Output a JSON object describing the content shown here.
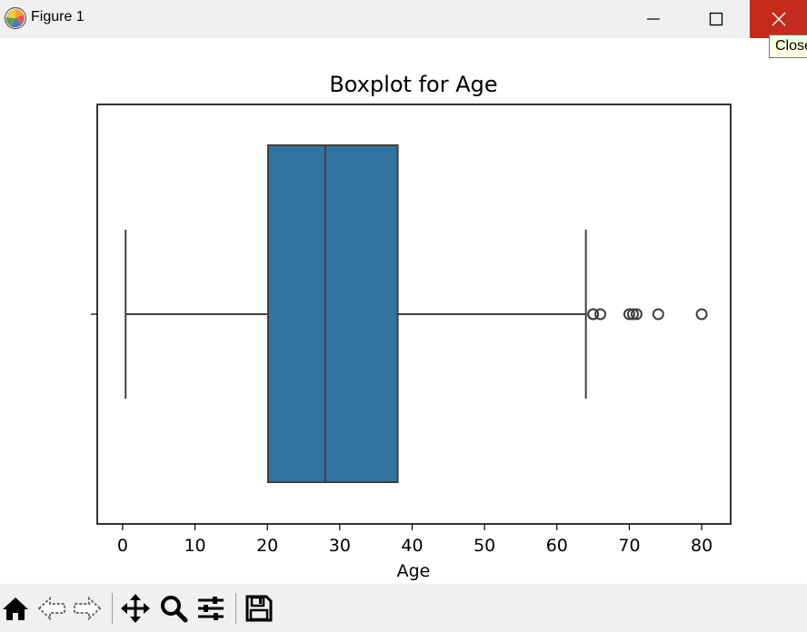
{
  "window": {
    "title": "Figure 1",
    "close_tooltip": "Close",
    "close_color": "#c42b1c"
  },
  "toolbar": {
    "tools": [
      "home-icon",
      "back-icon",
      "forward-icon",
      "pan-icon",
      "zoom-icon",
      "configure-subplots-icon",
      "save-icon"
    ]
  },
  "chart_data": {
    "type": "box",
    "orientation": "horizontal",
    "title": "Boxplot for Age",
    "xlabel": "Age",
    "ylabel": "",
    "xlim": [
      -3.5,
      84
    ],
    "xticks": [
      0,
      10,
      20,
      30,
      40,
      50,
      60,
      70,
      80
    ],
    "xtick_labels": [
      "0",
      "10",
      "20",
      "30",
      "40",
      "50",
      "60",
      "70",
      "80"
    ],
    "box_color": "#3274a1",
    "line_color": "#3f3f3f",
    "whisker_low": 0.42,
    "q1": 20.1,
    "median": 28.0,
    "q3": 38.0,
    "whisker_high": 64.0,
    "outliers": [
      65,
      65,
      66,
      70,
      70.5,
      71,
      74,
      80
    ]
  }
}
